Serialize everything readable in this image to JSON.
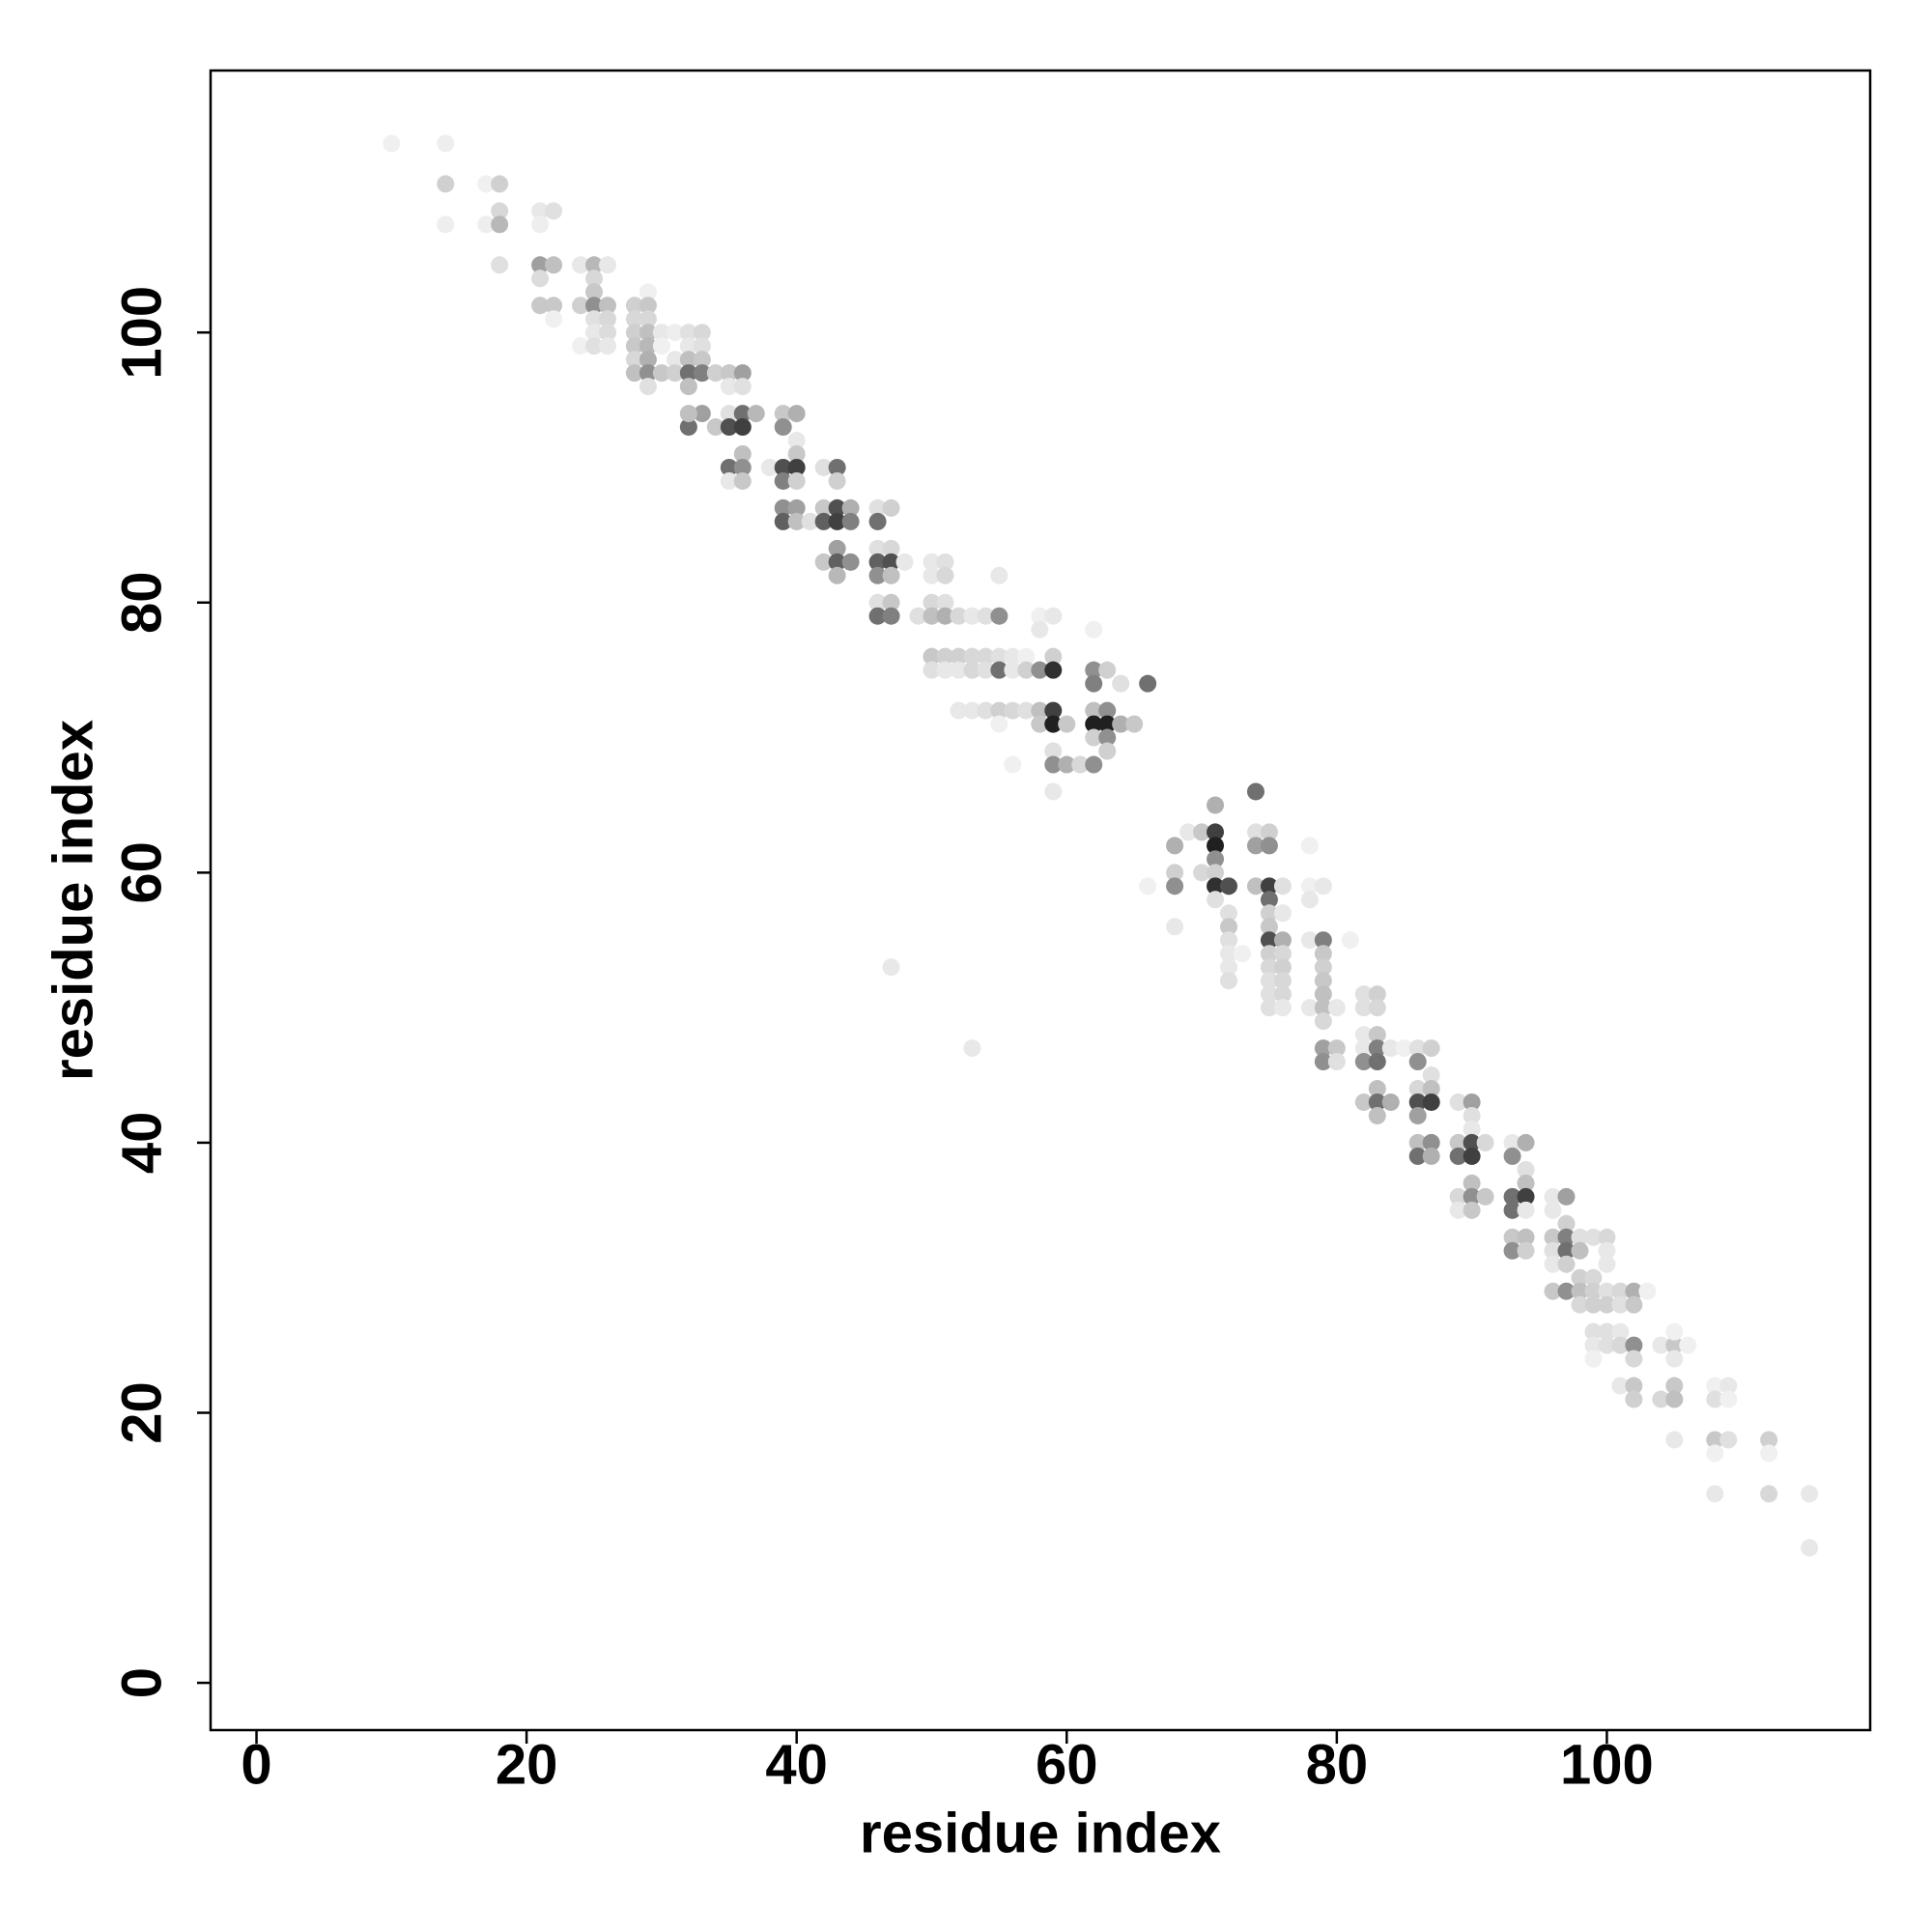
{
  "chart_data": {
    "type": "scatter",
    "xlabel": "residue index",
    "ylabel": "residue index",
    "xlim": [
      -3.4,
      119.5
    ],
    "ylim": [
      -3.5,
      119.4
    ],
    "xticks": [
      0,
      20,
      40,
      60,
      80,
      100
    ],
    "yticks": [
      0,
      20,
      40,
      60,
      80,
      100
    ],
    "grid": false,
    "x": [
      10,
      14,
      14,
      14,
      17,
      18,
      17,
      18,
      18,
      18,
      21,
      22,
      21,
      21,
      22,
      21,
      21,
      22,
      22,
      24,
      25,
      26,
      25,
      25,
      24,
      25,
      26,
      25,
      26,
      25,
      26,
      24,
      25,
      26,
      28,
      29,
      29,
      28,
      29,
      28,
      29,
      30,
      28,
      29,
      30,
      28,
      29,
      28,
      29,
      30,
      29,
      31,
      31,
      31,
      32,
      33,
      32,
      33,
      32,
      33,
      32,
      33,
      32,
      34,
      32,
      33,
      32,
      34,
      35,
      35,
      36,
      35,
      36,
      36,
      35,
      36,
      37,
      36,
      35,
      36,
      35,
      36,
      39,
      40,
      39,
      40,
      40,
      38,
      39,
      40,
      39,
      40,
      39,
      40,
      39,
      40,
      41,
      42,
      43,
      43,
      42,
      43,
      44,
      42,
      43,
      44,
      43,
      42,
      43,
      44,
      43,
      46,
      47,
      46,
      46,
      47,
      46,
      47,
      46,
      47,
      46,
      47,
      46,
      47,
      48,
      49,
      50,
      51,
      50,
      51,
      50,
      51,
      50,
      51,
      52,
      53,
      54,
      55,
      55,
      50,
      51,
      52,
      53,
      54,
      55,
      50,
      51,
      52,
      53,
      54,
      55,
      56,
      57,
      56,
      57,
      58,
      59,
      58,
      59,
      58,
      59,
      52,
      53,
      54,
      55,
      56,
      57,
      58,
      59,
      58,
      59,
      60,
      59,
      59,
      60,
      61,
      59,
      56,
      55,
      62,
      62,
      63,
      62,
      64,
      62,
      63,
      62,
      63,
      64,
      65,
      62,
      63,
      63,
      62,
      66,
      66,
      68,
      68,
      68,
      68,
      69,
      70,
      71,
      71,
      71,
      71,
      70,
      71,
      71,
      72,
      71,
      72,
      72,
      72,
      72,
      72,
      72,
      73,
      74,
      74,
      75,
      74,
      75,
      74,
      75,
      76,
      75,
      75,
      75,
      75,
      76,
      75,
      76,
      75,
      76,
      75,
      76,
      75,
      76,
      75,
      76,
      76,
      78,
      78,
      79,
      78,
      78,
      79,
      79,
      79,
      79,
      79,
      78,
      79,
      80,
      79,
      79,
      80,
      79,
      80,
      81,
      82,
      83,
      82,
      83,
      82,
      83,
      82,
      83,
      84,
      82,
      83,
      82,
      83,
      83,
      84,
      83,
      85,
      86,
      87,
      86,
      87,
      86,
      87,
      86,
      87,
      86,
      86,
      87,
      86,
      87,
      89,
      90,
      90,
      90,
      89,
      90,
      89,
      90,
      91,
      90,
      89,
      90,
      91,
      89,
      90,
      93,
      94,
      93,
      94,
      94,
      93,
      94,
      93,
      94,
      93,
      94,
      93,
      94,
      96,
      97,
      96,
      97,
      96,
      97,
      98,
      96,
      97,
      98,
      96,
      97,
      96,
      97,
      98,
      99,
      98,
      99,
      100,
      98,
      99,
      100,
      99,
      100,
      100,
      100,
      101,
      102,
      101,
      102,
      103,
      99,
      100,
      101,
      99,
      100,
      101,
      102,
      99,
      102,
      101,
      102,
      102,
      104,
      105,
      106,
      105,
      105,
      104,
      105,
      105,
      105,
      108,
      109,
      108,
      109,
      108,
      109,
      108,
      108,
      112,
      112,
      112,
      115,
      115,
      47,
      53
    ],
    "values": [
      114,
      114,
      111,
      108,
      111,
      111,
      108,
      109,
      108,
      105,
      109,
      109,
      108,
      105,
      105,
      104,
      102,
      102,
      101,
      105,
      105,
      105,
      104,
      103,
      102,
      102,
      102,
      101,
      101,
      100,
      100,
      99,
      99,
      99,
      102,
      103,
      102,
      101,
      101,
      100,
      100,
      100,
      99,
      99,
      99,
      98,
      98,
      97,
      97,
      97,
      96,
      100,
      98,
      97,
      100,
      100,
      99,
      99,
      98,
      98,
      97,
      97,
      96,
      97,
      93,
      94,
      94,
      93,
      94,
      97,
      97,
      96,
      96,
      94,
      93,
      93,
      94,
      91,
      90,
      90,
      89,
      89,
      94,
      94,
      93,
      92,
      91,
      90,
      90,
      90,
      89,
      89,
      87,
      87,
      86,
      86,
      86,
      90,
      90,
      89,
      87,
      87,
      87,
      86,
      86,
      86,
      84,
      83,
      83,
      83,
      82,
      87,
      87,
      86,
      84,
      84,
      83,
      83,
      82,
      82,
      80,
      80,
      79,
      79,
      83,
      79,
      83,
      83,
      82,
      82,
      80,
      80,
      79,
      79,
      79,
      79,
      79,
      79,
      82,
      76,
      76,
      76,
      76,
      76,
      76,
      75,
      75,
      75,
      75,
      75,
      75,
      76,
      76,
      75,
      75,
      79,
      79,
      78,
      76,
      75,
      75,
      72,
      72,
      72,
      72,
      72,
      72,
      72,
      72,
      71,
      71,
      71,
      69,
      68,
      68,
      68,
      66,
      68,
      71,
      78,
      75,
      75,
      74,
      74,
      72,
      72,
      71,
      71,
      71,
      71,
      70,
      70,
      69,
      68,
      74,
      59,
      62,
      60,
      59,
      56,
      63,
      63,
      65,
      63,
      62,
      61,
      60,
      60,
      59,
      59,
      58,
      57,
      56,
      55,
      54,
      53,
      52,
      54,
      66,
      63,
      63,
      62,
      62,
      59,
      59,
      59,
      58,
      57,
      56,
      55,
      55,
      54,
      54,
      53,
      53,
      52,
      52,
      51,
      51,
      50,
      50,
      57,
      62,
      59,
      59,
      58,
      55,
      55,
      54,
      53,
      52,
      51,
      50,
      50,
      50,
      49,
      47,
      47,
      46,
      46,
      55,
      51,
      51,
      50,
      50,
      48,
      48,
      47,
      47,
      47,
      46,
      46,
      43,
      44,
      43,
      43,
      42,
      47,
      47,
      47,
      46,
      45,
      44,
      44,
      43,
      43,
      42,
      40,
      40,
      39,
      39,
      43,
      43,
      42,
      41,
      40,
      40,
      39,
      39,
      40,
      37,
      36,
      36,
      36,
      35,
      35,
      40,
      40,
      39,
      38,
      37,
      36,
      36,
      35,
      35,
      33,
      33,
      32,
      32,
      36,
      36,
      35,
      34,
      33,
      33,
      33,
      32,
      32,
      32,
      31,
      31,
      29,
      29,
      30,
      30,
      29,
      29,
      29,
      28,
      28,
      28,
      33,
      33,
      32,
      31,
      29,
      29,
      28,
      28,
      29,
      26,
      26,
      26,
      25,
      25,
      25,
      25,
      24,
      24,
      22,
      22,
      21,
      25,
      25,
      25,
      26,
      24,
      21,
      22,
      21,
      18,
      22,
      22,
      21,
      21,
      18,
      18,
      17,
      14,
      18,
      17,
      14,
      14,
      10,
      53,
      47
    ],
    "colors": [
      "#f0f0f0",
      "#eeeeee",
      "#d0d0d0",
      "#eeeeee",
      "#f0f0f0",
      "#d0d0d0",
      "#eeeeee",
      "#d8d8d8",
      "#b8b8b8",
      "#e0e0e0",
      "#e8e8e8",
      "#e0e0e0",
      "#eeeeee",
      "#a0a0a0",
      "#c0c0c0",
      "#dcdcdc",
      "#c8c8c8",
      "#c8c8c8",
      "#f0f0f0",
      "#e8e8e8",
      "#b8b8b8",
      "#e8e8e8",
      "#d8d8d8",
      "#c8c8c8",
      "#d0d0d0",
      "#909090",
      "#c0c0c0",
      "#e0e0e0",
      "#d8d8d8",
      "#e8e8e8",
      "#dcdcdc",
      "#f0f0f0",
      "#e0e0e0",
      "#e8e8e8",
      "#d0d0d0",
      "#f0f0f0",
      "#c8c8c8",
      "#d8d8d8",
      "#d8d8d8",
      "#d0d0d0",
      "#c0c0c0",
      "#e8e8e8",
      "#c8c8c8",
      "#b8b8b8",
      "#f0f0f0",
      "#d8d8d8",
      "#b0b0b0",
      "#c0c0c0",
      "#909090",
      "#c8c8c8",
      "#e0e0e0",
      "#eeeeee",
      "#e8e8e8",
      "#d0d0d0",
      "#e0e0e0",
      "#d8d8d8",
      "#e8e8e8",
      "#e0e0e0",
      "#c0c0c0",
      "#c8c8c8",
      "#707070",
      "#808080",
      "#c0c0c0",
      "#d0d0d0",
      "#707070",
      "#a0a0a0",
      "#c0c0c0",
      "#c8c8c8",
      "#e0e0e0",
      "#c8c8c8",
      "#a0a0a0",
      "#e8e8e8",
      "#e0e0e0",
      "#707070",
      "#505050",
      "#404040",
      "#b8b8b8",
      "#c0c0c0",
      "#707070",
      "#909090",
      "#e8e8e8",
      "#c8c8c8",
      "#c8c8c8",
      "#b0b0b0",
      "#909090",
      "#e8e8e8",
      "#c8c8c8",
      "#e8e8e8",
      "#505050",
      "#404040",
      "#808080",
      "#d0d0d0",
      "#909090",
      "#a0a0a0",
      "#606060",
      "#c0c0c0",
      "#e0e0e0",
      "#e0e0e0",
      "#707070",
      "#d0d0d0",
      "#c8c8c8",
      "#505050",
      "#b0b0b0",
      "#606060",
      "#404040",
      "#808080",
      "#a0a0a0",
      "#c8c8c8",
      "#606060",
      "#909090",
      "#b8b8b8",
      "#e0e0e0",
      "#d0d0d0",
      "#707070",
      "#e0e0e0",
      "#d8d8d8",
      "#606060",
      "#505050",
      "#909090",
      "#c0c0c0",
      "#e0e0e0",
      "#c8c8c8",
      "#707070",
      "#808080",
      "#e8e8e8",
      "#e0e0e0",
      "#e8e8e8",
      "#e0e0e0",
      "#e8e8e8",
      "#d8d8d8",
      "#d8d8d8",
      "#e0e0e0",
      "#c0c0c0",
      "#b0b0b0",
      "#d8d8d8",
      "#e8e8e8",
      "#e0e0e0",
      "#909090",
      "#e8e8e8",
      "#c8c8c8",
      "#d0d0d0",
      "#d0d0d0",
      "#d8d8d8",
      "#d8d8d8",
      "#e0e0e0",
      "#e0e0e0",
      "#e8e8e8",
      "#e8e8e8",
      "#d8d8d8",
      "#e0e0e0",
      "#707070",
      "#e8e8e8",
      "#f0f0f0",
      "#e8e8e8",
      "#d0d0d0",
      "#f0f0f0",
      "#e8e8e8",
      "#e8e8e8",
      "#d0d0d0",
      "#909090",
      "#303030",
      "#e8e8e8",
      "#e8e8e8",
      "#e0e0e0",
      "#d0d0d0",
      "#d8d8d8",
      "#e0e0e0",
      "#c0c0c0",
      "#404040",
      "#c8c8c8",
      "#202020",
      "#c8c8c8",
      "#e0e0e0",
      "#909090",
      "#b0b0b0",
      "#d8d8d8",
      "#e8e8e8",
      "#f0f0f0",
      "#f0f0f0",
      "#f0f0f0",
      "#909090",
      "#d0d0d0",
      "#808080",
      "#e0e0e0",
      "#c0c0c0",
      "#909090",
      "#202020",
      "#202020",
      "#b0b0b0",
      "#c8c8c8",
      "#d0d0d0",
      "#909090",
      "#d0d0d0",
      "#909090",
      "#707070",
      "#f0f0f0",
      "#b0b0b0",
      "#d0d0d0",
      "#909090",
      "#e8e8e8",
      "#e8e8e8",
      "#c8c8c8",
      "#b0b0b0",
      "#404040",
      "#202020",
      "#909090",
      "#d8d8d8",
      "#d0d0d0",
      "#303030",
      "#505050",
      "#e0e0e0",
      "#e0e0e0",
      "#c8c8c8",
      "#e0e0e0",
      "#e8e8e8",
      "#e8e8e8",
      "#e0e0e0",
      "#f0f0f0",
      "#707070",
      "#e0e0e0",
      "#d0d0d0",
      "#a0a0a0",
      "#909090",
      "#c0c0c0",
      "#404040",
      "#e0e0e0",
      "#707070",
      "#d0d0d0",
      "#c8c8c8",
      "#505050",
      "#b0b0b0",
      "#d0d0d0",
      "#d8d8d8",
      "#d8d8d8",
      "#d0d0d0",
      "#e0e0e0",
      "#d8d8d8",
      "#e0e0e0",
      "#d8d8d8",
      "#e0e0e0",
      "#e8e8e8",
      "#e8e8e8",
      "#f0f0f0",
      "#f0f0f0",
      "#e8e8e8",
      "#e8e8e8",
      "#e8e8e8",
      "#808080",
      "#c8c8c8",
      "#d0d0d0",
      "#c8c8c8",
      "#c0c0c0",
      "#e8e8e8",
      "#c0c0c0",
      "#e8e8e8",
      "#d8d8d8",
      "#a0a0a0",
      "#c8c8c8",
      "#909090",
      "#e0e0e0",
      "#f0f0f0",
      "#e0e0e0",
      "#d0d0d0",
      "#e0e0e0",
      "#d8d8d8",
      "#e8e8e8",
      "#c8c8c8",
      "#e8e8e8",
      "#808080",
      "#e8e8e8",
      "#909090",
      "#707070",
      "#c8c8c8",
      "#c0c0c0",
      "#707070",
      "#b0b0b0",
      "#c0c0c0",
      "#f0f0f0",
      "#e0e0e0",
      "#d0d0d0",
      "#909090",
      "#e0e0e0",
      "#d8d8d8",
      "#c0c0c0",
      "#505050",
      "#404040",
      "#a0a0a0",
      "#c0c0c0",
      "#909090",
      "#707070",
      "#b0b0b0",
      "#e0e0e0",
      "#a0a0a0",
      "#e0e0e0",
      "#e8e8e8",
      "#c8c8c8",
      "#505050",
      "#707070",
      "#404040",
      "#d8d8d8",
      "#c0c0c0",
      "#d8d8d8",
      "#909090",
      "#c8c8c8",
      "#e8e8e8",
      "#c8c8c8",
      "#e8e8e8",
      "#b0b0b0",
      "#909090",
      "#e0e0e0",
      "#c0c0c0",
      "#707070",
      "#404040",
      "#707070",
      "#e8e8e8",
      "#c8c8c8",
      "#c0c0c0",
      "#909090",
      "#d0d0d0",
      "#e8e8e8",
      "#a0a0a0",
      "#e8e8e8",
      "#d0d0d0",
      "#c8c8c8",
      "#808080",
      "#e0e0e0",
      "#e0e0e0",
      "#707070",
      "#c0c0c0",
      "#e8e8e8",
      "#d0d0d0",
      "#c8c8c8",
      "#909090",
      "#d0d0d0",
      "#d8d8d8",
      "#c0c0c0",
      "#d0d0d0",
      "#e0e0e0",
      "#d8d8d8",
      "#d0d0d0",
      "#d0d0d0",
      "#e0e0e0",
      "#d8d8d8",
      "#e8e8e8",
      "#e8e8e8",
      "#d8d8d8",
      "#b0b0b0",
      "#e0e0e0",
      "#c8c8c8",
      "#f0f0f0",
      "#e0e0e0",
      "#e0e0e0",
      "#e8e8e8",
      "#e8e8e8",
      "#e0e0e0",
      "#d8d8d8",
      "#909090",
      "#f0f0f0",
      "#d8d8d8",
      "#e8e8e8",
      "#c8c8c8",
      "#d0d0d0",
      "#e8e8e8",
      "#c8c8c8",
      "#f0f0f0",
      "#f0f0f0",
      "#e8e8e8",
      "#d8d8d8",
      "#c8c8c8",
      "#c0c0c0",
      "#e8e8e8",
      "#f0f0f0",
      "#e8e8e8",
      "#e0e0e0",
      "#f0f0f0",
      "#c8c8c8",
      "#e0e0e0",
      "#f0f0f0",
      "#e8e8e8",
      "#d0d0d0",
      "#f0f0f0",
      "#d8d8d8",
      "#e8e8e8",
      "#e8e8e8",
      "#e8e8e8",
      "#e8e8e8"
    ]
  }
}
